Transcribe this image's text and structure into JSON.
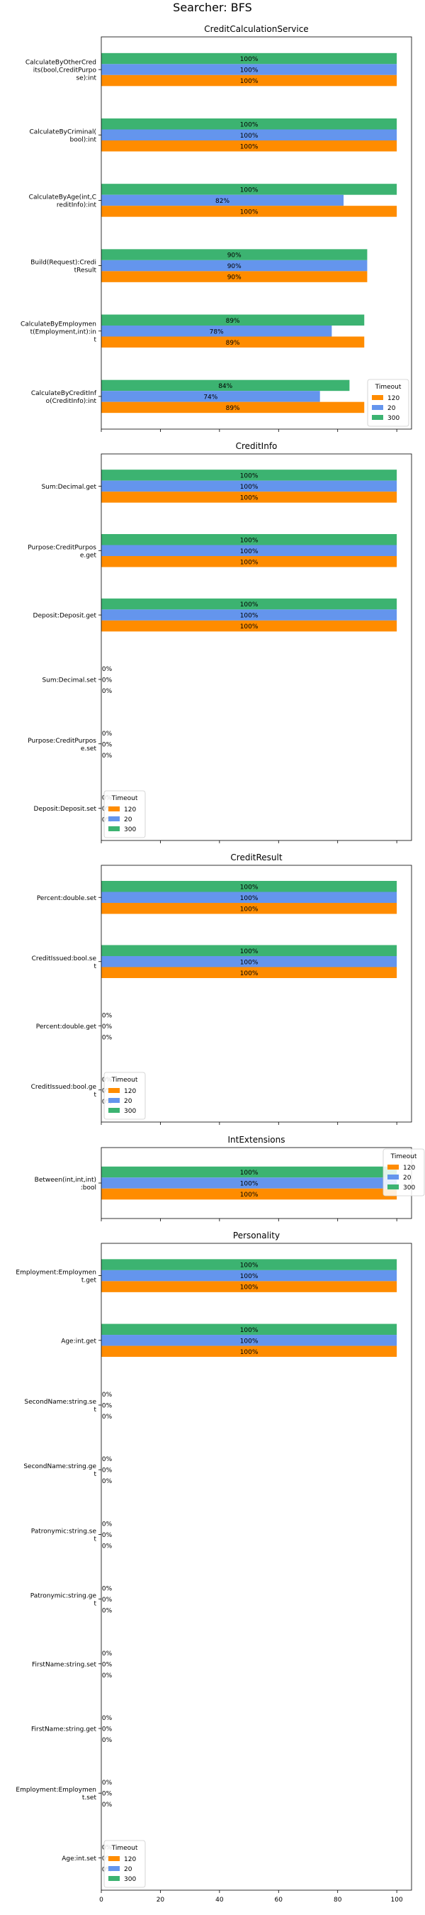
{
  "suptitle": "Searcher: BFS",
  "legend_title": "Timeout",
  "colors": {
    "120": "#ff8c00",
    "20": "#6495ed",
    "300": "#3cb371"
  },
  "chart_data": [
    {
      "type": "bar",
      "orientation": "horizontal",
      "title": "CreditCalculationService",
      "xlim": [
        0,
        105
      ],
      "legend": "lower-right",
      "series_names": [
        "120",
        "20",
        "300"
      ],
      "categories": [
        {
          "label": "CalculateByOtherCred\nits(bool,CreditPurpo\nse):int",
          "values": [
            100,
            100,
            100
          ],
          "labels": [
            "100%",
            "100%",
            "100%"
          ]
        },
        {
          "label": "CalculateByCriminal(\nbool):int",
          "values": [
            100,
            100,
            100
          ],
          "labels": [
            "100%",
            "100%",
            "100%"
          ]
        },
        {
          "label": "CalculateByAge(int,C\nreditInfo):int",
          "values": [
            100,
            82,
            100
          ],
          "labels": [
            "100%",
            "82%",
            "100%"
          ]
        },
        {
          "label": "Build(Request):Credi\ntResult",
          "values": [
            90,
            90,
            90
          ],
          "labels": [
            "90%",
            "90%",
            "90%"
          ]
        },
        {
          "label": "CalculateByEmploymen\nt(Employment,int):in\nt",
          "values": [
            89,
            78,
            89
          ],
          "labels": [
            "89%",
            "78%",
            "89%"
          ]
        },
        {
          "label": "CalculateByCreditInf\no(CreditInfo):int",
          "values": [
            89,
            74,
            84
          ],
          "labels": [
            "89%",
            "74%",
            "84%"
          ]
        }
      ]
    },
    {
      "type": "bar",
      "orientation": "horizontal",
      "title": "CreditInfo",
      "xlim": [
        0,
        105
      ],
      "legend": "lower-left",
      "series_names": [
        "120",
        "20",
        "300"
      ],
      "categories": [
        {
          "label": "Sum:Decimal.get",
          "values": [
            100,
            100,
            100
          ],
          "labels": [
            "100%",
            "100%",
            "100%"
          ]
        },
        {
          "label": "Purpose:CreditPurpos\ne.get",
          "values": [
            100,
            100,
            100
          ],
          "labels": [
            "100%",
            "100%",
            "100%"
          ]
        },
        {
          "label": "Deposit:Deposit.get",
          "values": [
            100,
            100,
            100
          ],
          "labels": [
            "100%",
            "100%",
            "100%"
          ]
        },
        {
          "label": "Sum:Decimal.set",
          "values": [
            0,
            0,
            0
          ],
          "labels": [
            "0%",
            "0%",
            "0%"
          ]
        },
        {
          "label": "Purpose:CreditPurpos\ne.set",
          "values": [
            0,
            0,
            0
          ],
          "labels": [
            "0%",
            "0%",
            "0%"
          ]
        },
        {
          "label": "Deposit:Deposit.set",
          "values": [
            0,
            0,
            0
          ],
          "labels": [
            "0%",
            "0%",
            "0%"
          ]
        }
      ]
    },
    {
      "type": "bar",
      "orientation": "horizontal",
      "title": "CreditResult",
      "xlim": [
        0,
        105
      ],
      "legend": "lower-left",
      "series_names": [
        "120",
        "20",
        "300"
      ],
      "categories": [
        {
          "label": "Percent:double.set",
          "values": [
            100,
            100,
            100
          ],
          "labels": [
            "100%",
            "100%",
            "100%"
          ]
        },
        {
          "label": "CreditIssued:bool.se\nt",
          "values": [
            100,
            100,
            100
          ],
          "labels": [
            "100%",
            "100%",
            "100%"
          ]
        },
        {
          "label": "Percent:double.get",
          "values": [
            0,
            0,
            0
          ],
          "labels": [
            "0%",
            "0%",
            "0%"
          ]
        },
        {
          "label": "CreditIssued:bool.ge\nt",
          "values": [
            0,
            0,
            0
          ],
          "labels": [
            "0%",
            "0%",
            "0%"
          ]
        }
      ]
    },
    {
      "type": "bar",
      "orientation": "horizontal",
      "title": "IntExtensions",
      "xlim": [
        0,
        105
      ],
      "legend": "upper-right",
      "series_names": [
        "120",
        "20",
        "300"
      ],
      "categories": [
        {
          "label": "Between(int,int,int)\n:bool",
          "values": [
            100,
            100,
            100
          ],
          "labels": [
            "100%",
            "100%",
            "100%"
          ]
        }
      ]
    },
    {
      "type": "bar",
      "orientation": "horizontal",
      "title": "Personality",
      "xlim": [
        0,
        105
      ],
      "xticks": [
        0,
        20,
        40,
        60,
        80,
        100
      ],
      "legend": "lower-left",
      "series_names": [
        "120",
        "20",
        "300"
      ],
      "categories": [
        {
          "label": "Employment:Employmen\nt.get",
          "values": [
            100,
            100,
            100
          ],
          "labels": [
            "100%",
            "100%",
            "100%"
          ]
        },
        {
          "label": "Age:int.get",
          "values": [
            100,
            100,
            100
          ],
          "labels": [
            "100%",
            "100%",
            "100%"
          ]
        },
        {
          "label": "SecondName:string.se\nt",
          "values": [
            0,
            0,
            0
          ],
          "labels": [
            "0%",
            "0%",
            "0%"
          ]
        },
        {
          "label": "SecondName:string.ge\nt",
          "values": [
            0,
            0,
            0
          ],
          "labels": [
            "0%",
            "0%",
            "0%"
          ]
        },
        {
          "label": "Patronymic:string.se\nt",
          "values": [
            0,
            0,
            0
          ],
          "labels": [
            "0%",
            "0%",
            "0%"
          ]
        },
        {
          "label": "Patronymic:string.ge\nt",
          "values": [
            0,
            0,
            0
          ],
          "labels": [
            "0%",
            "0%",
            "0%"
          ]
        },
        {
          "label": "FirstName:string.set",
          "values": [
            0,
            0,
            0
          ],
          "labels": [
            "0%",
            "0%",
            "0%"
          ]
        },
        {
          "label": "FirstName:string.get",
          "values": [
            0,
            0,
            0
          ],
          "labels": [
            "0%",
            "0%",
            "0%"
          ]
        },
        {
          "label": "Employment:Employmen\nt.set",
          "values": [
            0,
            0,
            0
          ],
          "labels": [
            "0%",
            "0%",
            "0%"
          ]
        },
        {
          "label": "Age:int.set",
          "values": [
            0,
            0,
            0
          ],
          "labels": [
            "0%",
            "0%",
            "0%"
          ]
        }
      ]
    }
  ]
}
